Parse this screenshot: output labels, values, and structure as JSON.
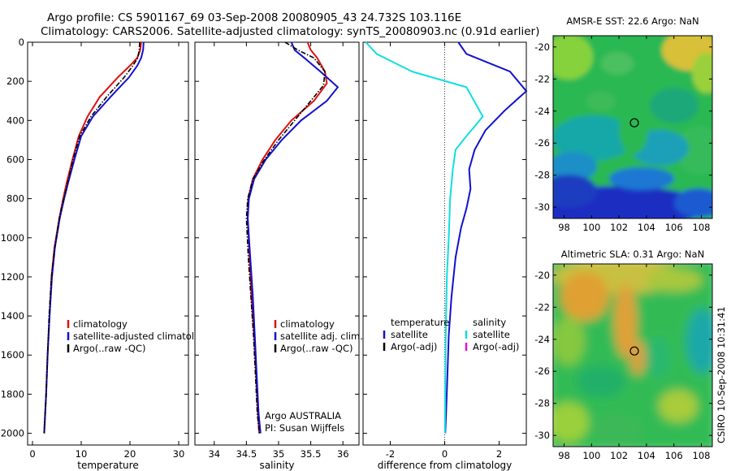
{
  "header": {
    "title_line1": "Argo profile: CS 5901167_69 03-Sep-2008 20080905_43 24.732S 103.116E",
    "title_line2": "Climatology: CARS2006. Satellite-adjusted climatology: synTS_20080903.nc (0.91d earlier)"
  },
  "side_stamp": "CSIRO 10-Sep-2008 10:31:41",
  "colors": {
    "climatology": "#dd1111",
    "satellite": "#1111cc",
    "argo": "#000000",
    "satellite_diff": "#11dddd",
    "argo_adj": "#dd11dd"
  },
  "chart_data": [
    {
      "id": "temperature",
      "type": "line",
      "xlabel": "temperature",
      "ylabel": "",
      "xlim": [
        -1,
        32
      ],
      "ylim": [
        2060,
        0
      ],
      "xticks": [
        0,
        10,
        20,
        30
      ],
      "yticks": [
        0,
        200,
        400,
        600,
        800,
        1000,
        1200,
        1400,
        1600,
        1800,
        2000
      ],
      "legend": {
        "placement": "lower-right",
        "entries": [
          {
            "label": "climatology",
            "series": "climatology"
          },
          {
            "label": "satellite-adjusted climatology",
            "series": "satellite"
          },
          {
            "label": "Argo(..raw -QC)",
            "series": "argo"
          }
        ]
      },
      "series": [
        {
          "name": "climatology",
          "color": "climatology",
          "style": "solid",
          "x": [
            22.3,
            22.1,
            21.5,
            20.0,
            17.5,
            13.8,
            11.3,
            9.5,
            8.2,
            7.0,
            6.3,
            5.5,
            4.5,
            3.9,
            3.5,
            3.1,
            2.8,
            2.6,
            2.4
          ],
          "y": [
            0,
            40,
            80,
            120,
            180,
            280,
            380,
            480,
            600,
            720,
            800,
            900,
            1050,
            1200,
            1400,
            1600,
            1800,
            1900,
            2000
          ]
        },
        {
          "name": "satellite-adjusted climatology",
          "color": "satellite",
          "style": "solid",
          "x": [
            22.8,
            22.7,
            22.3,
            21.5,
            19.8,
            16.0,
            12.4,
            10.0,
            8.6,
            7.3,
            6.5,
            5.6,
            4.6,
            4.0,
            3.5,
            3.1,
            2.8,
            2.6,
            2.4
          ],
          "y": [
            0,
            40,
            80,
            120,
            180,
            280,
            380,
            480,
            600,
            720,
            800,
            900,
            1050,
            1200,
            1400,
            1600,
            1800,
            1900,
            2000
          ]
        },
        {
          "name": "Argo(..raw -QC)",
          "color": "argo",
          "style": "dashdot",
          "x": [
            22.0,
            21.9,
            21.6,
            20.6,
            18.8,
            15.2,
            12.0,
            9.7,
            8.3,
            7.2,
            6.4,
            5.5,
            4.6,
            3.9,
            3.4,
            3.1,
            2.8,
            2.6,
            2.4
          ],
          "y": [
            0,
            40,
            80,
            120,
            180,
            280,
            380,
            480,
            600,
            720,
            800,
            900,
            1050,
            1200,
            1400,
            1600,
            1800,
            1900,
            2000
          ]
        }
      ]
    },
    {
      "id": "salinity",
      "type": "line",
      "xlabel": "salinity",
      "ylabel": "",
      "xlim": [
        33.7,
        36.25
      ],
      "ylim": [
        2060,
        0
      ],
      "xticks": [
        34,
        34.5,
        35,
        35.5,
        36
      ],
      "yticks": [],
      "annotations": [
        "Argo AUSTRALIA",
        "PI: Susan Wijffels"
      ],
      "legend": {
        "placement": "lower-right",
        "entries": [
          {
            "label": "climatology",
            "series": "climatology"
          },
          {
            "label": "satellite adj. clim.",
            "series": "satellite"
          },
          {
            "label": "Argo(..raw -QC)",
            "series": "argo"
          }
        ]
      },
      "series": [
        {
          "name": "climatology",
          "color": "climatology",
          "style": "solid",
          "x": [
            35.45,
            35.5,
            35.6,
            35.72,
            35.75,
            35.55,
            35.2,
            34.95,
            34.75,
            34.6,
            34.53,
            34.52,
            34.55,
            34.58,
            34.62,
            34.65,
            34.68,
            34.7
          ],
          "y": [
            0,
            40,
            80,
            150,
            210,
            300,
            400,
            500,
            600,
            700,
            800,
            900,
            1100,
            1300,
            1500,
            1700,
            1900,
            2000
          ]
        },
        {
          "name": "satellite adj. clim.",
          "color": "satellite",
          "style": "solid",
          "x": [
            35.2,
            35.25,
            35.4,
            35.65,
            35.92,
            35.75,
            35.35,
            35.05,
            34.8,
            34.62,
            34.54,
            34.52,
            34.56,
            34.6,
            34.63,
            34.66,
            34.69,
            34.72
          ],
          "y": [
            0,
            40,
            80,
            150,
            230,
            300,
            400,
            500,
            600,
            700,
            800,
            900,
            1100,
            1300,
            1500,
            1700,
            1900,
            2000
          ]
        },
        {
          "name": "Argo(..raw -QC)",
          "color": "argo",
          "style": "dashdot",
          "x": [
            35.1,
            35.3,
            35.55,
            35.72,
            35.7,
            35.5,
            35.25,
            35.0,
            34.78,
            34.6,
            34.52,
            34.5,
            34.53,
            34.57,
            34.61,
            34.64,
            34.67,
            34.7
          ],
          "y": [
            0,
            40,
            80,
            150,
            220,
            300,
            400,
            500,
            600,
            700,
            800,
            900,
            1100,
            1300,
            1500,
            1700,
            1900,
            2000
          ]
        }
      ]
    },
    {
      "id": "difference",
      "type": "line",
      "xlabel": "difference from climatology",
      "ylabel": "",
      "xlim": [
        -3,
        3
      ],
      "ylim": [
        2060,
        0
      ],
      "xticks": [
        -2,
        0,
        2
      ],
      "yticks": [],
      "zero_line": true,
      "legend": {
        "placement": "lower-center",
        "groups": [
          {
            "header": "temperature",
            "entries": [
              {
                "label": "satellite",
                "series": "satellite"
              },
              {
                "label": "Argo(-adj)",
                "series": "argo"
              }
            ]
          },
          {
            "header": "salinity",
            "entries": [
              {
                "label": "satellite",
                "series": "satellite_diff"
              },
              {
                "label": "Argo(-adj)",
                "series": "argo_adj"
              }
            ]
          }
        ]
      },
      "series": [
        {
          "name": "temperature satellite",
          "color": "satellite",
          "style": "solid",
          "x": [
            0.5,
            0.8,
            2.4,
            3.0,
            2.2,
            1.5,
            1.1,
            0.9,
            0.95,
            0.8,
            0.6,
            0.4,
            0.25,
            0.15,
            0.1,
            0.05,
            0.02
          ],
          "y": [
            0,
            60,
            150,
            250,
            350,
            450,
            550,
            650,
            750,
            850,
            950,
            1100,
            1300,
            1500,
            1700,
            1900,
            2000
          ]
        },
        {
          "name": "salinity satellite",
          "color": "satellite_diff",
          "style": "solid",
          "x": [
            -2.9,
            -2.5,
            -1.2,
            0.8,
            1.4,
            0.8,
            0.4,
            0.3,
            0.2,
            0.15,
            0.08,
            0.05,
            0.03,
            0.02,
            0.01
          ],
          "y": [
            0,
            60,
            150,
            230,
            380,
            480,
            550,
            650,
            800,
            1000,
            1200,
            1400,
            1600,
            1800,
            2000
          ]
        }
      ]
    }
  ],
  "maps": [
    {
      "id": "sst",
      "title": "AMSR-E SST: 22.6 Argo: NaN",
      "type": "heatmap",
      "xticks": [
        98,
        100,
        102,
        104,
        106,
        108
      ],
      "yticks": [
        -20,
        -22,
        -24,
        -26,
        -28,
        -30
      ],
      "xlim": [
        97.2,
        108.8
      ],
      "ylim": [
        -30.7,
        -19.3
      ],
      "marker": {
        "lon": 103.116,
        "lat": -24.732
      }
    },
    {
      "id": "sla",
      "title": "Altimetric SLA: 0.31 Argo: NaN",
      "type": "heatmap",
      "xticks": [
        98,
        100,
        102,
        104,
        106,
        108
      ],
      "yticks": [
        -20,
        -22,
        -24,
        -26,
        -28,
        -30
      ],
      "xlim": [
        97.2,
        108.8
      ],
      "ylim": [
        -30.7,
        -19.3
      ],
      "marker": {
        "lon": 103.116,
        "lat": -24.732
      }
    }
  ]
}
